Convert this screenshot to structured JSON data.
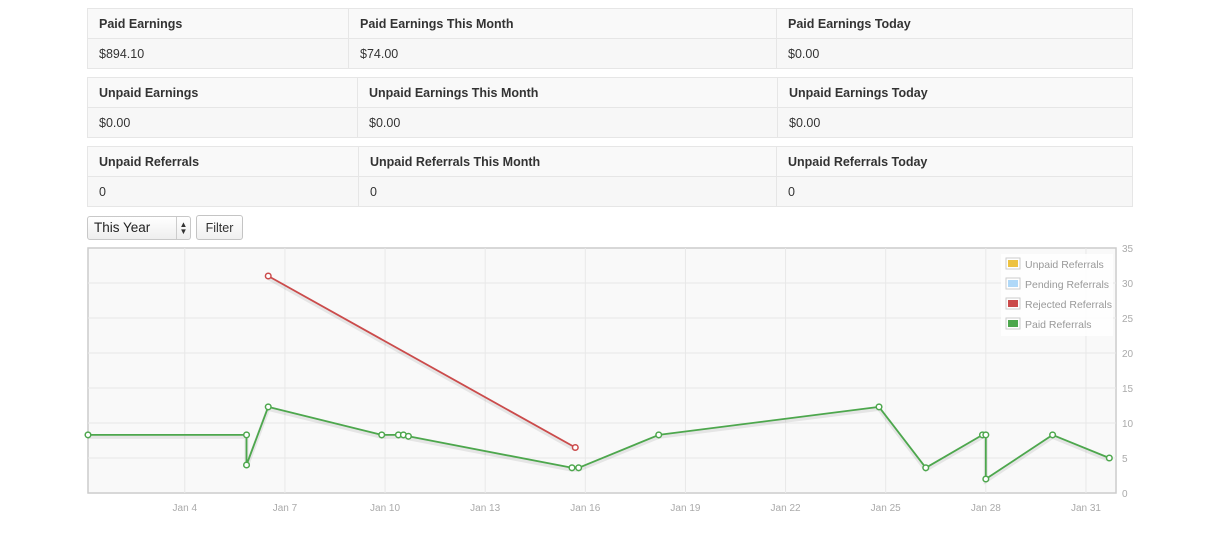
{
  "stats": [
    {
      "headers": [
        "Paid Earnings",
        "Paid Earnings This Month",
        "Paid Earnings Today"
      ],
      "values": [
        "$894.10",
        "$74.00",
        "$0.00"
      ]
    },
    {
      "headers": [
        "Unpaid Earnings",
        "Unpaid Earnings This Month",
        "Unpaid Earnings Today"
      ],
      "values": [
        "$0.00",
        "$0.00",
        "$0.00"
      ]
    },
    {
      "headers": [
        "Unpaid Referrals",
        "Unpaid Referrals This Month",
        "Unpaid Referrals Today"
      ],
      "values": [
        "0",
        "0",
        "0"
      ]
    }
  ],
  "filter": {
    "period_selected": "This Year",
    "button_label": "Filter"
  },
  "chart_data": {
    "type": "line",
    "x_ticks": [
      "Jan 4",
      "Jan 7",
      "Jan 10",
      "Jan 13",
      "Jan 16",
      "Jan 19",
      "Jan 22",
      "Jan 25",
      "Jan 28",
      "Jan 31"
    ],
    "y_ticks": [
      0,
      5,
      10,
      15,
      20,
      25,
      30,
      35
    ],
    "xlim": [
      1.1,
      31.9
    ],
    "ylim": [
      0,
      35
    ],
    "legend_position": "top-right",
    "grid": true,
    "legend": [
      {
        "name": "Unpaid Referrals",
        "color": "#edc240"
      },
      {
        "name": "Pending Referrals",
        "color": "#afd8f8"
      },
      {
        "name": "Rejected Referrals",
        "color": "#cb4b4b"
      },
      {
        "name": "Paid Referrals",
        "color": "#4da74d"
      }
    ],
    "series": [
      {
        "name": "Rejected Referrals",
        "color": "#cb4b4b",
        "points": [
          [
            6.5,
            31
          ],
          [
            15.7,
            6.5
          ]
        ]
      },
      {
        "name": "Paid Referrals",
        "color": "#4da74d",
        "points": [
          [
            1.1,
            8.3
          ],
          [
            5.85,
            8.3
          ],
          [
            5.85,
            4
          ],
          [
            6.5,
            12.3
          ],
          [
            9.9,
            8.3
          ],
          [
            10.4,
            8.3
          ],
          [
            10.55,
            8.3
          ],
          [
            10.7,
            8.1
          ],
          [
            15.6,
            3.6
          ],
          [
            15.8,
            3.6
          ],
          [
            18.2,
            8.3
          ],
          [
            24.8,
            12.3
          ],
          [
            26.2,
            3.6
          ],
          [
            27.9,
            8.3
          ],
          [
            28.0,
            8.3
          ],
          [
            28.0,
            2
          ],
          [
            30.0,
            8.3
          ],
          [
            31.7,
            5
          ]
        ]
      }
    ]
  }
}
